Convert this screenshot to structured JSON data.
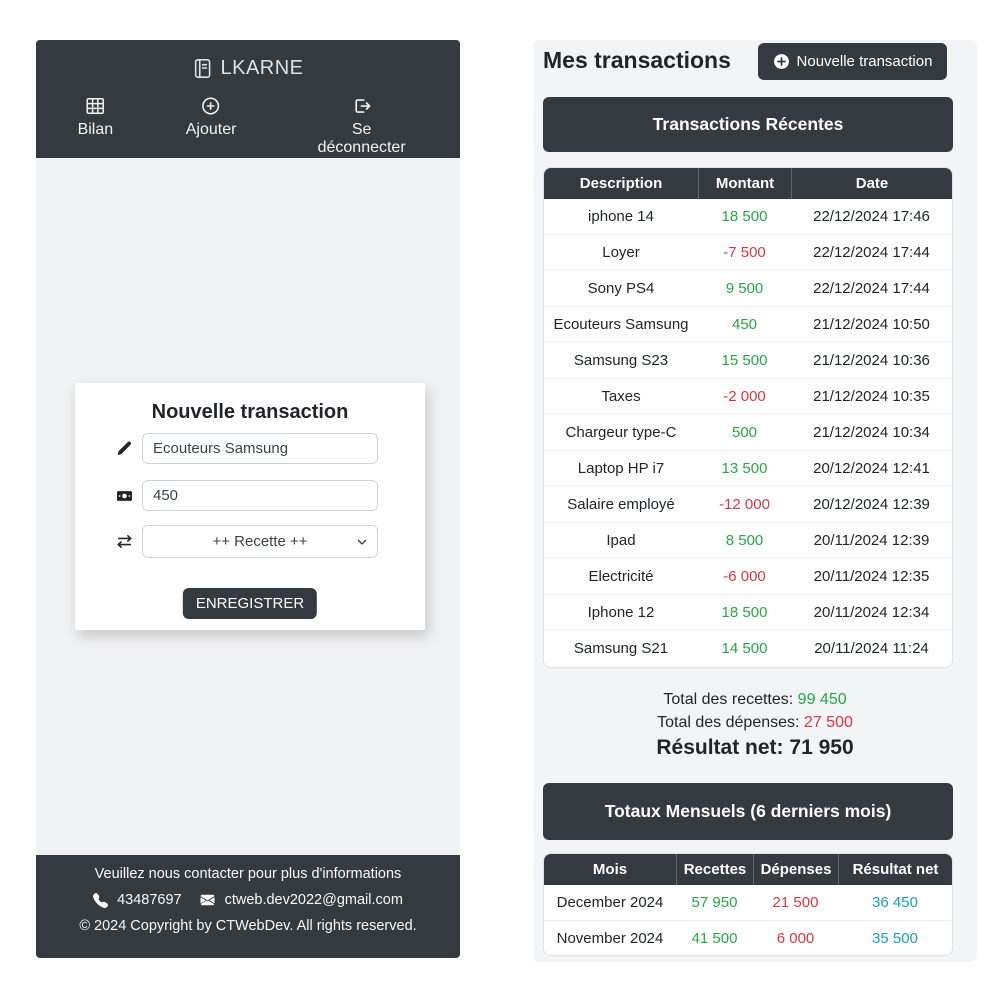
{
  "colors": {
    "dark": "#343a40",
    "positive": "#28a745",
    "negative": "#dc3545",
    "net": "#17a2b8",
    "page_bg": "#f1f2f4"
  },
  "left_panel": {
    "brand": "LKARNE",
    "brand_icon": "journal-icon",
    "nav": [
      {
        "icon": "table-icon",
        "label": "Bilan"
      },
      {
        "icon": "plus-circle-icon",
        "label": "Ajouter"
      },
      {
        "icon": "logout-icon",
        "label": "Se déconnecter"
      }
    ],
    "form": {
      "title": "Nouvelle transaction",
      "description_icon": "pencil-icon",
      "description_value": "Ecouteurs Samsung",
      "amount_icon": "cash-icon",
      "amount_value": "450",
      "type_icon": "swap-icon",
      "type_value": "++ Recette ++",
      "submit_label": "ENREGISTRER"
    },
    "footer": {
      "contact_text": "Veuillez nous contacter pour plus d'informations",
      "phone_icon": "phone-icon",
      "phone": "43487697",
      "email_icon": "envelope-icon",
      "email": "ctweb.dev2022@gmail.com",
      "copyright": "© 2024 Copyright by CTWebDev. All rights reserved."
    }
  },
  "right_panel": {
    "title": "Mes transactions",
    "new_button": {
      "icon": "plus-circle-icon",
      "label": "Nouvelle transaction"
    },
    "recent_header": "Transactions Récentes",
    "table": {
      "headers": [
        "Description",
        "Montant",
        "Date"
      ],
      "rows": [
        {
          "description": "iphone 14",
          "amount": "18 500",
          "date": "22/12/2024 17:46"
        },
        {
          "description": "Loyer",
          "amount": "-7 500",
          "date": "22/12/2024 17:44"
        },
        {
          "description": "Sony PS4",
          "amount": "9 500",
          "date": "22/12/2024 17:44"
        },
        {
          "description": "Ecouteurs Samsung",
          "amount": "450",
          "date": "21/12/2024 10:50"
        },
        {
          "description": "Samsung S23",
          "amount": "15 500",
          "date": "21/12/2024 10:36"
        },
        {
          "description": "Taxes",
          "amount": "-2 000",
          "date": "21/12/2024 10:35"
        },
        {
          "description": "Chargeur type-C",
          "amount": "500",
          "date": "21/12/2024 10:34"
        },
        {
          "description": "Laptop HP i7",
          "amount": "13 500",
          "date": "20/12/2024 12:41"
        },
        {
          "description": "Salaire employé",
          "amount": "-12 000",
          "date": "20/12/2024 12:39"
        },
        {
          "description": "Ipad",
          "amount": "8 500",
          "date": "20/11/2024 12:39"
        },
        {
          "description": "Electricité",
          "amount": "-6 000",
          "date": "20/11/2024 12:35"
        },
        {
          "description": "Iphone 12",
          "amount": "18 500",
          "date": "20/11/2024 12:34"
        },
        {
          "description": "Samsung S21",
          "amount": "14 500",
          "date": "20/11/2024 11:24"
        }
      ]
    },
    "totals": {
      "recettes_label": "Total des recettes:",
      "recettes_value": "99 450",
      "depenses_label": "Total des dépenses:",
      "depenses_value": "27 500",
      "net_label": "Résultat net:",
      "net_value": "71 950"
    },
    "monthly_header": "Totaux Mensuels (6 derniers mois)",
    "monthly_table": {
      "headers": [
        "Mois",
        "Recettes",
        "Dépenses",
        "Résultat net"
      ],
      "rows": [
        {
          "month": "December 2024",
          "recettes": "57 950",
          "depenses": "21 500",
          "net": "36 450"
        },
        {
          "month": "November 2024",
          "recettes": "41 500",
          "depenses": "6 000",
          "net": "35 500"
        }
      ]
    }
  }
}
